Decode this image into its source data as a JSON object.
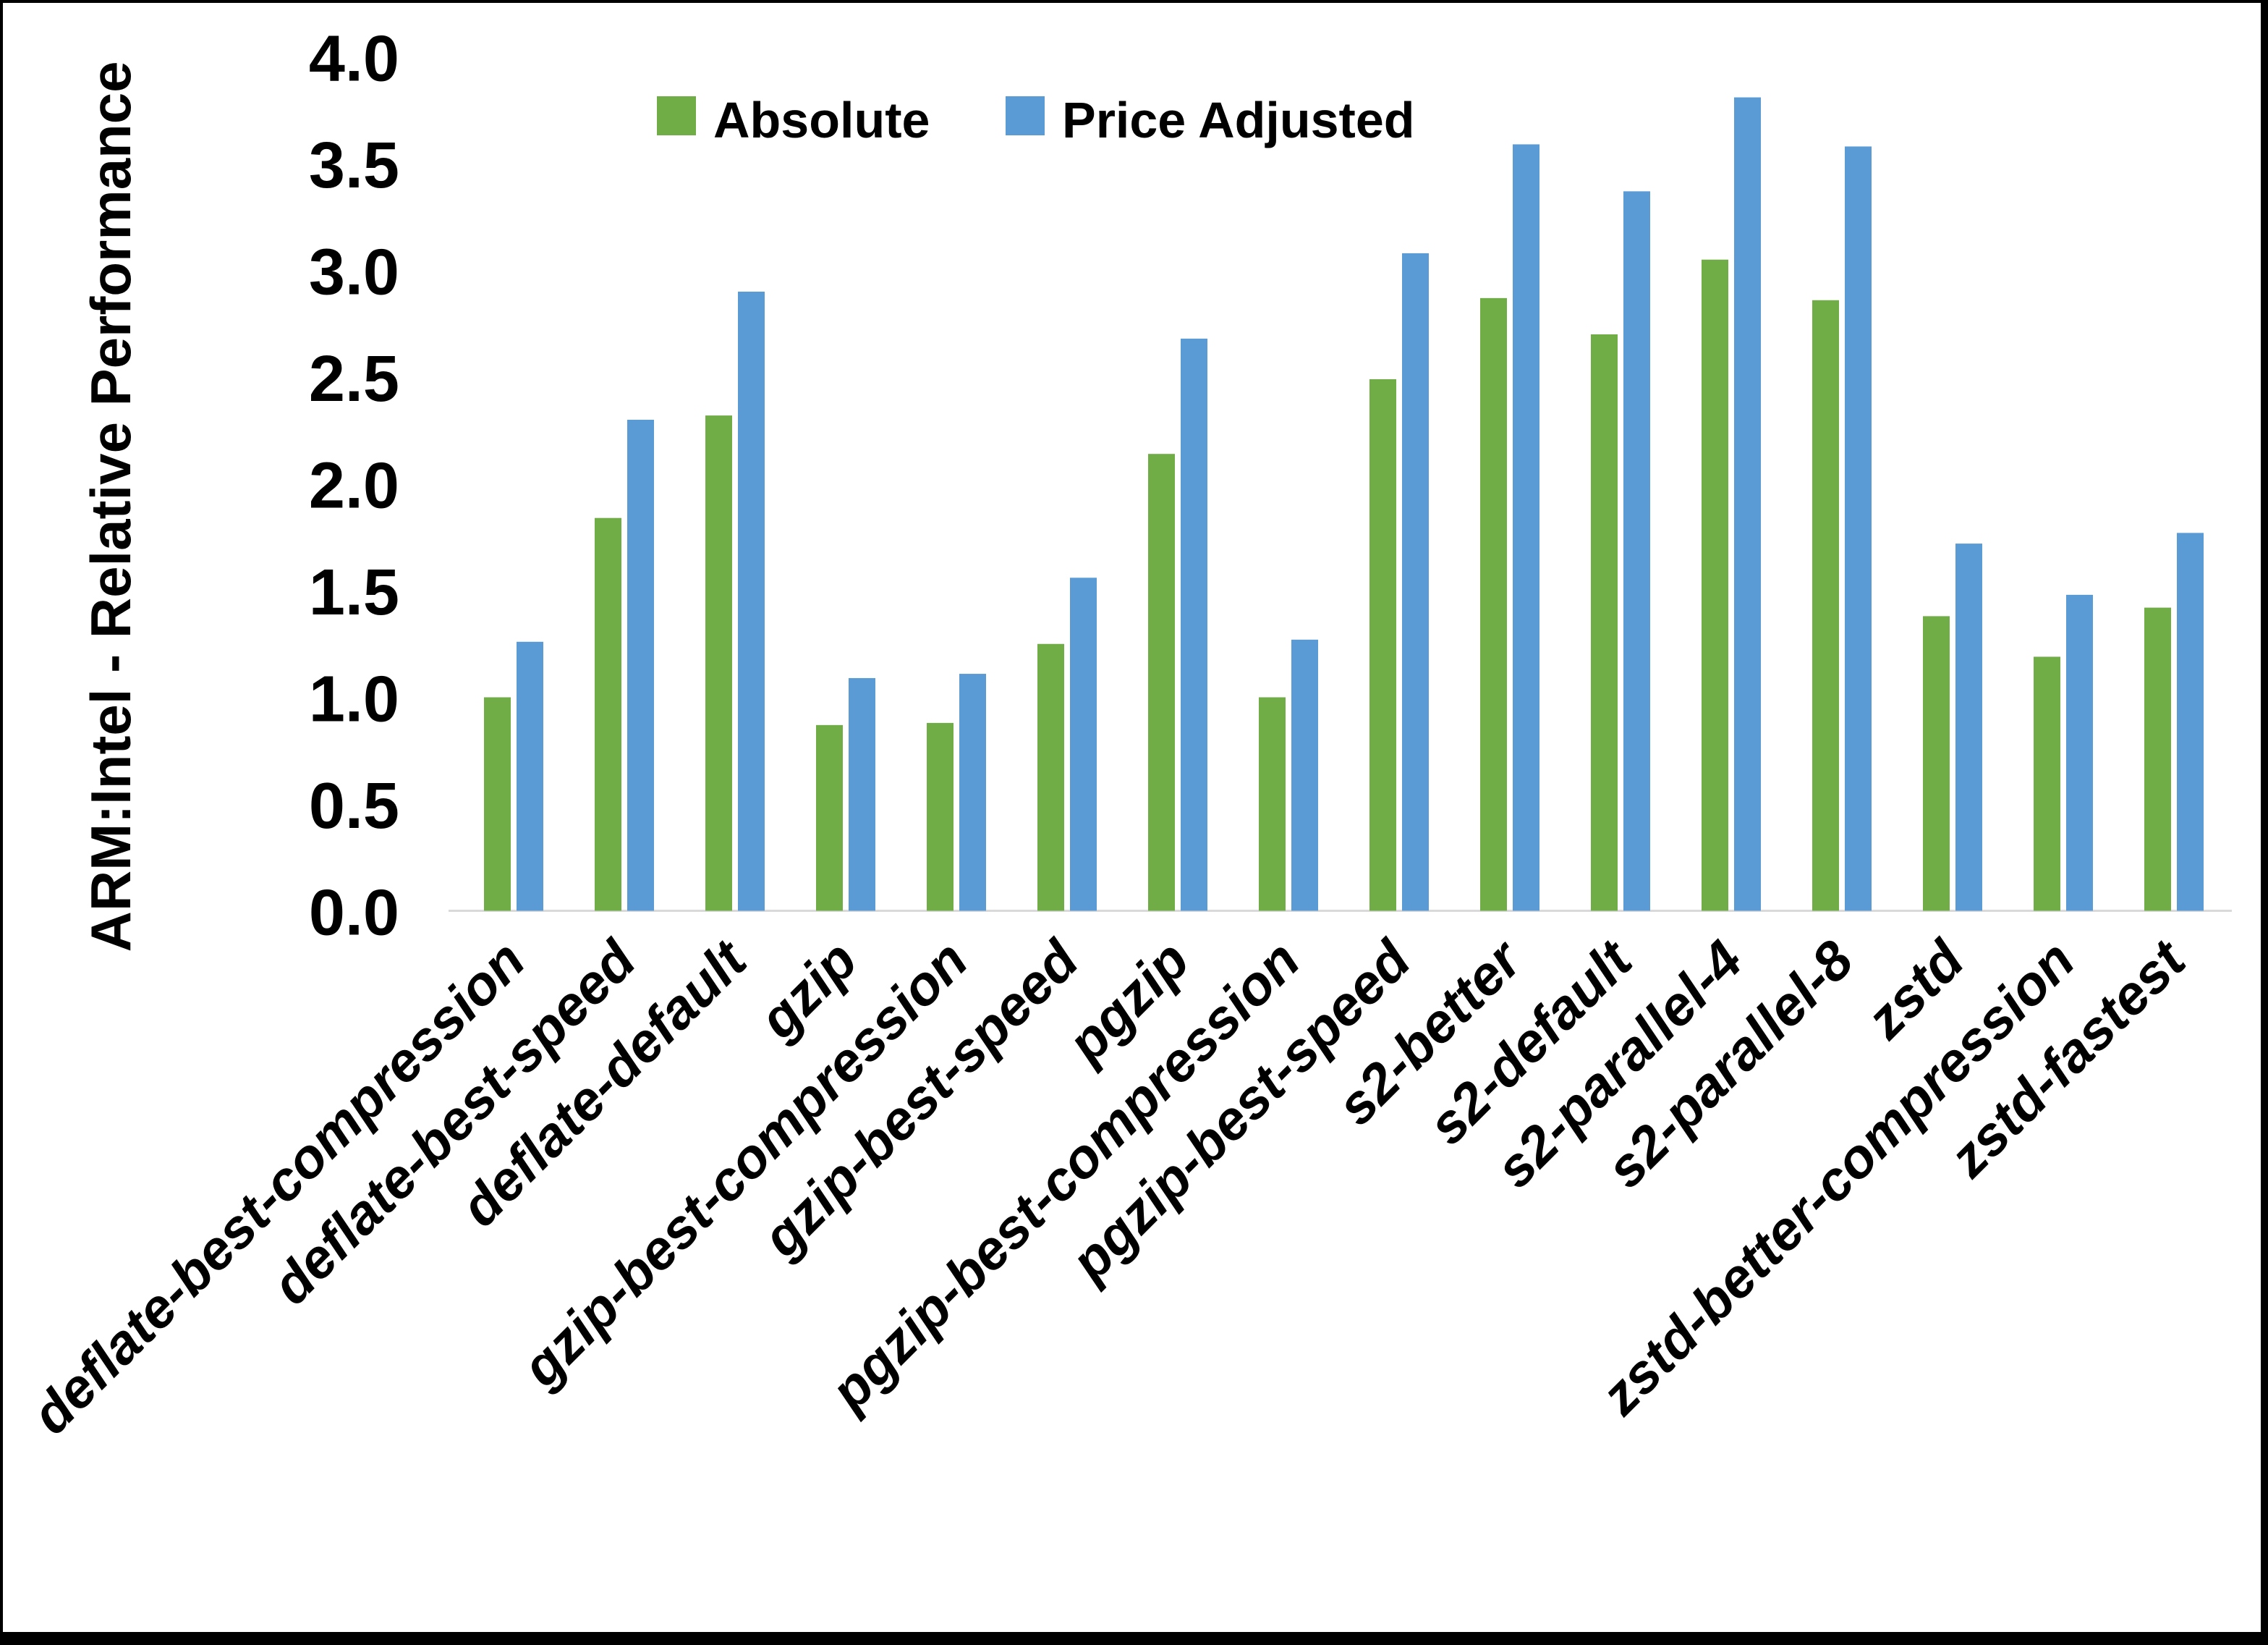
{
  "chart_data": {
    "type": "bar",
    "title": "",
    "xlabel": "",
    "ylabel": "ARM:Intel - Relative Performance",
    "ylim": [
      0.0,
      4.0
    ],
    "ytick_labels": [
      "0.0",
      "0.5",
      "1.0",
      "1.5",
      "2.0",
      "2.5",
      "3.0",
      "3.5",
      "4.0"
    ],
    "grid": false,
    "legend_position": "top-center",
    "categories": [
      "deflate-best-compression",
      "deflate-best-speed",
      "deflate-default",
      "gzip",
      "gzip-best-compression",
      "gzip-best-speed",
      "pgzip",
      "pgzip-best-compression",
      "pgzip-best-speed",
      "s2-better",
      "s2-default",
      "s2-parallel-4",
      "s2-parallel-8",
      "zstd",
      "zstd-better-compression",
      "zstd-fastest"
    ],
    "series": [
      {
        "name": "Absolute",
        "color": "#70AD47",
        "values": [
          1.0,
          1.84,
          2.32,
          0.87,
          0.88,
          1.25,
          2.14,
          1.0,
          2.49,
          2.87,
          2.7,
          3.05,
          2.86,
          1.38,
          1.19,
          1.42
        ]
      },
      {
        "name": "Price Adjusted",
        "color": "#5B9BD5",
        "values": [
          1.26,
          2.3,
          2.9,
          1.09,
          1.11,
          1.56,
          2.68,
          1.27,
          3.08,
          3.59,
          3.37,
          3.81,
          3.58,
          1.72,
          1.48,
          1.77
        ]
      }
    ]
  },
  "colors": {
    "axis_line": "#D9D9D9",
    "text": "#000000",
    "background": "#FFFFFF",
    "screen_border": "#000000"
  }
}
